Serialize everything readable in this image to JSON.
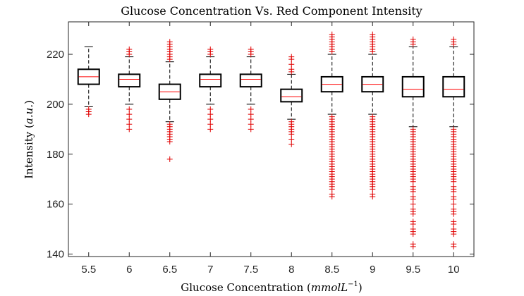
{
  "chart_data": {
    "type": "boxplot",
    "title": "Glucose Concentration Vs. Red Component Intensity",
    "xlabel_main": "Glucose Concentration (",
    "xlabel_unit": "mmolL",
    "xlabel_exp": "−1",
    "xlabel_close": ")",
    "ylabel_main": "Intensity (",
    "ylabel_unit": "a.u.",
    "ylabel_close": ")",
    "ylim": [
      139,
      233
    ],
    "yticks": [
      140,
      160,
      180,
      200,
      220
    ],
    "categories": [
      "5.5",
      "6",
      "6.5",
      "7",
      "7.5",
      "8",
      "8.5",
      "9",
      "9.5",
      "10"
    ],
    "colors": {
      "box": "#000000",
      "median": "#ff0000",
      "outlier": "#e00000"
    },
    "boxes": [
      {
        "q1": 208,
        "median": 211,
        "q3": 214,
        "lower": 199,
        "upper": 223,
        "outliers": [
          196,
          197,
          198
        ]
      },
      {
        "q1": 207,
        "median": 210,
        "q3": 212,
        "lower": 200,
        "upper": 219,
        "outliers": [
          190,
          192,
          194,
          196,
          198,
          220,
          221,
          222
        ]
      },
      {
        "q1": 202,
        "median": 205,
        "q3": 208,
        "lower": 193,
        "upper": 217,
        "outliers": [
          178,
          185,
          186,
          187,
          188,
          189,
          190,
          191,
          192,
          218,
          219,
          220,
          221,
          222,
          223,
          224,
          225
        ]
      },
      {
        "q1": 207,
        "median": 210,
        "q3": 212,
        "lower": 200,
        "upper": 219,
        "outliers": [
          190,
          192,
          194,
          196,
          198,
          220,
          221,
          222
        ]
      },
      {
        "q1": 207,
        "median": 210,
        "q3": 212,
        "lower": 200,
        "upper": 219,
        "outliers": [
          190,
          192,
          194,
          196,
          198,
          220,
          221,
          222
        ]
      },
      {
        "q1": 201,
        "median": 203,
        "q3": 206,
        "lower": 194,
        "upper": 212,
        "outliers": [
          184,
          186,
          188,
          189,
          190,
          191,
          192,
          193,
          213,
          214,
          216,
          218,
          219
        ]
      },
      {
        "q1": 205,
        "median": 208,
        "q3": 211,
        "lower": 196,
        "upper": 220,
        "outliers": [
          163,
          164,
          166,
          167,
          168,
          169,
          170,
          171,
          172,
          173,
          174,
          175,
          176,
          177,
          178,
          179,
          180,
          181,
          182,
          183,
          184,
          185,
          186,
          187,
          188,
          189,
          190,
          191,
          192,
          193,
          194,
          195,
          221,
          222,
          223,
          224,
          225,
          226,
          227,
          228
        ]
      },
      {
        "q1": 205,
        "median": 208,
        "q3": 211,
        "lower": 196,
        "upper": 220,
        "outliers": [
          163,
          164,
          166,
          167,
          168,
          169,
          170,
          171,
          172,
          173,
          174,
          175,
          176,
          177,
          178,
          179,
          180,
          181,
          182,
          183,
          184,
          185,
          186,
          187,
          188,
          189,
          190,
          191,
          192,
          193,
          194,
          195,
          221,
          222,
          223,
          224,
          225,
          226,
          227,
          228
        ]
      },
      {
        "q1": 203,
        "median": 206,
        "q3": 211,
        "lower": 191,
        "upper": 223,
        "outliers": [
          143,
          144,
          148,
          149,
          150,
          152,
          153,
          156,
          157,
          158,
          160,
          162,
          163,
          165,
          166,
          167,
          169,
          170,
          171,
          172,
          173,
          174,
          175,
          176,
          177,
          178,
          179,
          180,
          181,
          182,
          183,
          184,
          185,
          186,
          187,
          188,
          189,
          190,
          224,
          225,
          226
        ]
      },
      {
        "q1": 203,
        "median": 206,
        "q3": 211,
        "lower": 191,
        "upper": 223,
        "outliers": [
          143,
          144,
          148,
          149,
          150,
          152,
          153,
          156,
          157,
          158,
          160,
          162,
          163,
          165,
          166,
          167,
          169,
          170,
          171,
          172,
          173,
          174,
          175,
          176,
          177,
          178,
          179,
          180,
          181,
          182,
          183,
          184,
          185,
          186,
          187,
          188,
          189,
          190,
          224,
          225,
          226
        ]
      }
    ]
  }
}
